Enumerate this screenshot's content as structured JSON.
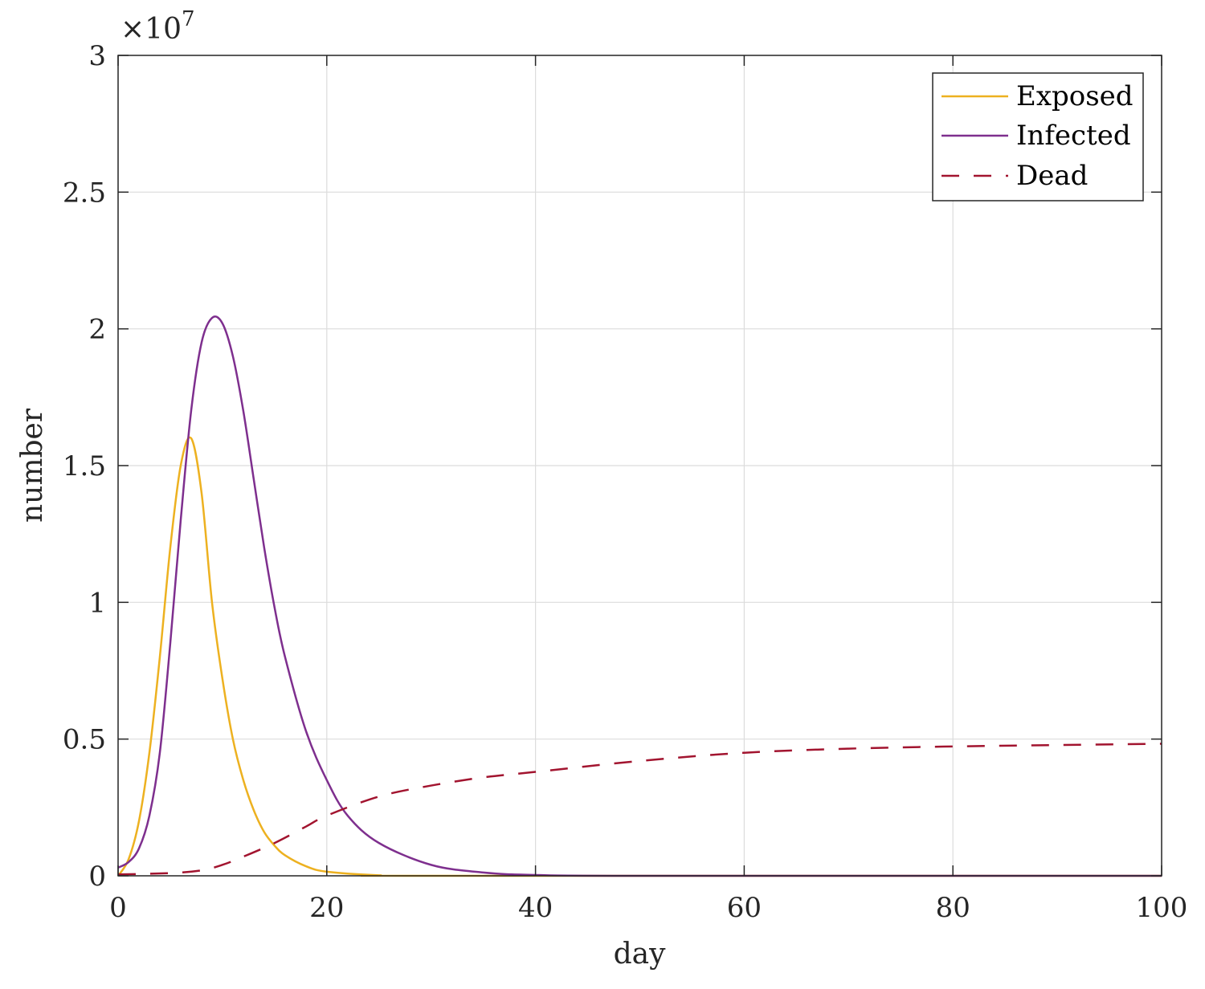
{
  "chart_data": {
    "type": "line",
    "title": "",
    "xlabel": "day",
    "ylabel": "number",
    "y_exponent_label": "×10^7",
    "y_exponent": 7,
    "xlim": [
      0,
      100
    ],
    "ylim": [
      0,
      3
    ],
    "x_ticks": [
      0,
      20,
      40,
      60,
      80,
      100
    ],
    "x_tick_labels": [
      "0",
      "20",
      "40",
      "60",
      "80",
      "100"
    ],
    "y_ticks": [
      0,
      0.5,
      1,
      1.5,
      2,
      2.5,
      3
    ],
    "y_tick_labels": [
      "0",
      "0.5",
      "1",
      "1.5",
      "2",
      "2.5",
      "3"
    ],
    "grid": true,
    "legend_position": "top-right",
    "series": [
      {
        "name": "Exposed",
        "color": "#EDB120",
        "style": "solid",
        "x": [
          0,
          1,
          2,
          3,
          4,
          5,
          6,
          7,
          8,
          9,
          10,
          11,
          12,
          13,
          14,
          15,
          16,
          18,
          20,
          25,
          30,
          100
        ],
        "values": [
          0,
          0.06,
          0.2,
          0.45,
          0.8,
          1.2,
          1.5,
          1.6,
          1.4,
          1.0,
          0.72,
          0.5,
          0.35,
          0.24,
          0.16,
          0.11,
          0.075,
          0.035,
          0.015,
          0.002,
          0,
          0
        ]
      },
      {
        "name": "Infected",
        "color": "#7E2F8E",
        "style": "solid",
        "x": [
          0,
          1,
          2,
          3,
          4,
          5,
          6,
          7,
          8,
          9,
          10,
          11,
          12,
          13,
          14,
          15,
          16,
          18,
          20,
          22,
          25,
          30,
          35,
          40,
          50,
          100
        ],
        "values": [
          0.03,
          0.05,
          0.1,
          0.22,
          0.45,
          0.85,
          1.3,
          1.7,
          1.95,
          2.04,
          2.02,
          1.9,
          1.7,
          1.45,
          1.2,
          0.98,
          0.8,
          0.53,
          0.35,
          0.22,
          0.12,
          0.04,
          0.012,
          0.003,
          0,
          0
        ]
      },
      {
        "name": "Dead",
        "color": "#A2142F",
        "style": "dashed",
        "x": [
          0,
          5,
          8,
          10,
          12,
          15,
          18,
          20,
          25,
          30,
          35,
          40,
          50,
          60,
          70,
          80,
          90,
          100
        ],
        "values": [
          0.005,
          0.01,
          0.02,
          0.04,
          0.07,
          0.12,
          0.18,
          0.22,
          0.29,
          0.33,
          0.36,
          0.38,
          0.42,
          0.45,
          0.465,
          0.473,
          0.478,
          0.483
        ]
      }
    ]
  },
  "legend": {
    "items": [
      {
        "label": "Exposed",
        "color": "#EDB120",
        "style": "solid"
      },
      {
        "label": "Infected",
        "color": "#7E2F8E",
        "style": "solid"
      },
      {
        "label": "Dead",
        "color": "#A2142F",
        "style": "dashed"
      }
    ]
  },
  "axes": {
    "xlabel": "day",
    "ylabel": "number",
    "exponent_base": "×10",
    "exponent_power": "7"
  }
}
